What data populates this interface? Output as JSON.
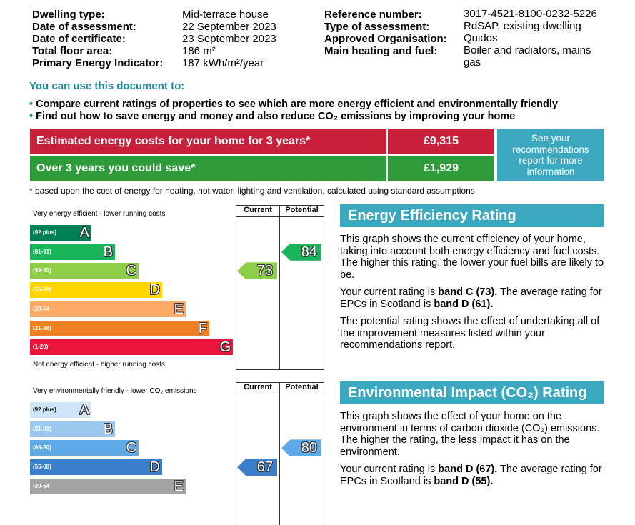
{
  "details": {
    "left": [
      {
        "label": "Dwelling type:",
        "value": "Mid-terrace house"
      },
      {
        "label": "Date of assessment:",
        "value": "22 September 2023"
      },
      {
        "label": "Date of certificate:",
        "value": "23 September 2023"
      },
      {
        "label": "Total floor area:",
        "value": "186 m²"
      },
      {
        "label": "Primary Energy Indicator:",
        "value": "187 kWh/m²/year"
      }
    ],
    "right": [
      {
        "label": "Reference number:",
        "value": "3017-4521-8100-0232-5226"
      },
      {
        "label": "Type of assessment:",
        "value": "RdSAP, existing dwelling"
      },
      {
        "label": "Approved Organisation:",
        "value": "Quidos"
      },
      {
        "label": "Main heating and fuel:",
        "value": "Boiler and radiators, mains gas"
      }
    ]
  },
  "uses": {
    "heading": "You can use this document to:",
    "items": [
      "Compare current ratings of properties to see which are more energy efficient and environmentally friendly",
      "Find out how to save energy and money and also reduce CO₂ emissions by improving your home"
    ]
  },
  "costs": {
    "rows": [
      {
        "label": "Estimated energy costs for your home for 3 years*",
        "value": "£9,315"
      },
      {
        "label": "Over 3 years you could save*",
        "value": "£1,929"
      }
    ],
    "note": "See your recommendations report for more information"
  },
  "footnote": "* based upon the cost of energy for heating, hot water, lighting and ventilation, calculated using standard assumptions",
  "efficiency": {
    "top_label": "Very energy efficient - lower running costs",
    "bottom_label": "Not energy efficient - higher running costs",
    "current_header": "Current",
    "potential_header": "Potential",
    "bands": [
      {
        "range": "(92 plus)",
        "letter": "A",
        "color": "#008054"
      },
      {
        "range": "(81-91)",
        "letter": "B",
        "color": "#19b459"
      },
      {
        "range": "(69-80)",
        "letter": "C",
        "color": "#8dce46"
      },
      {
        "range": "(55-68)",
        "letter": "D",
        "color": "#ffd500"
      },
      {
        "range": "(39-54",
        "letter": "E",
        "color": "#fcaa65"
      },
      {
        "range": "(21-38)",
        "letter": "F",
        "color": "#ef8023"
      },
      {
        "range": "(1-20)",
        "letter": "G",
        "color": "#e9153b"
      }
    ],
    "current": 73,
    "potential": 84,
    "heading": "Energy Efficiency Rating",
    "paragraphs": [
      [
        {
          "text": "This graph shows the current efficiency of your home, taking into account both energy efficiency and fuel costs. The higher this rating, the lower your fuel bills are likely to be.",
          "bold": false
        }
      ],
      [
        {
          "text": "Your current rating is ",
          "bold": false
        },
        {
          "text": "band C (73).",
          "bold": true
        },
        {
          "text": " The average rating for EPCs in Scotland is ",
          "bold": false
        },
        {
          "text": "band D (61).",
          "bold": true
        }
      ],
      [
        {
          "text": "The potential rating shows the effect of undertaking all of the improvement measures listed within your recommendations report.",
          "bold": false
        }
      ]
    ]
  },
  "environmental": {
    "top_label": "Very environmentally friendly - lower CO₂ emissions",
    "current_header": "Current",
    "potential_header": "Potential",
    "bands": [
      {
        "range": "(92 plus)",
        "letter": "A",
        "color": "#cfe4f7"
      },
      {
        "range": "(81-91)",
        "letter": "B",
        "color": "#9cc7ee"
      },
      {
        "range": "(69-80)",
        "letter": "C",
        "color": "#5fa9e6"
      },
      {
        "range": "(55-68)",
        "letter": "D",
        "color": "#3b7fcc"
      },
      {
        "range": "(39-54",
        "letter": "E",
        "color": "#a3a3a3"
      }
    ],
    "current": 67,
    "potential": 80,
    "heading": "Environmental Impact (CO₂) Rating",
    "paragraphs": [
      [
        {
          "text": "This graph shows the effect of your home on the environment in terms of carbon dioxide (CO₂) emissions. The higher the rating, the less impact it has on the environment.",
          "bold": false
        }
      ],
      [
        {
          "text": "Your current rating is ",
          "bold": false
        },
        {
          "text": "band D (67).",
          "bold": true
        },
        {
          "text": " The average rating for EPCs in Scotland is ",
          "bold": false
        },
        {
          "text": "band D (55).",
          "bold": true
        }
      ]
    ]
  }
}
